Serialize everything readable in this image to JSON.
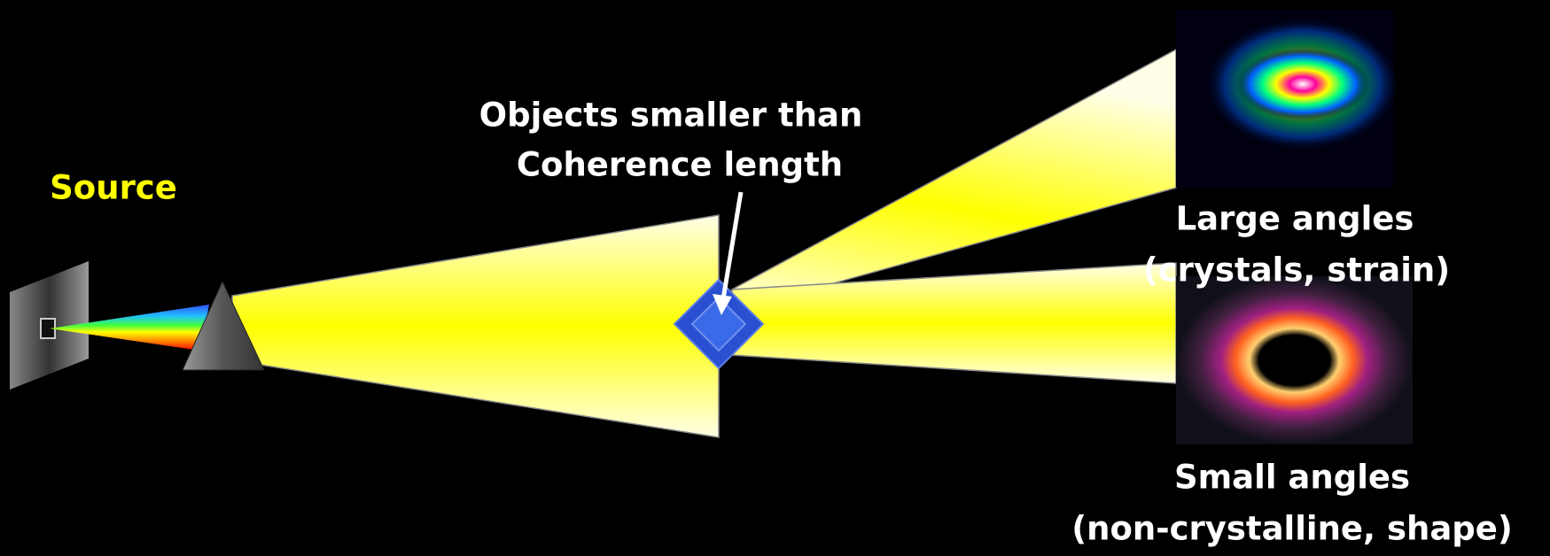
{
  "source": {
    "label": "Source"
  },
  "object": {
    "label_lines": [
      "Objects smaller than",
      "Coherence length"
    ]
  },
  "large_angles": {
    "title": "Large angles",
    "note": "(crystals, strain)"
  },
  "small_angles": {
    "title": "Small angles",
    "note": "(non-crystalline, shape)"
  }
}
